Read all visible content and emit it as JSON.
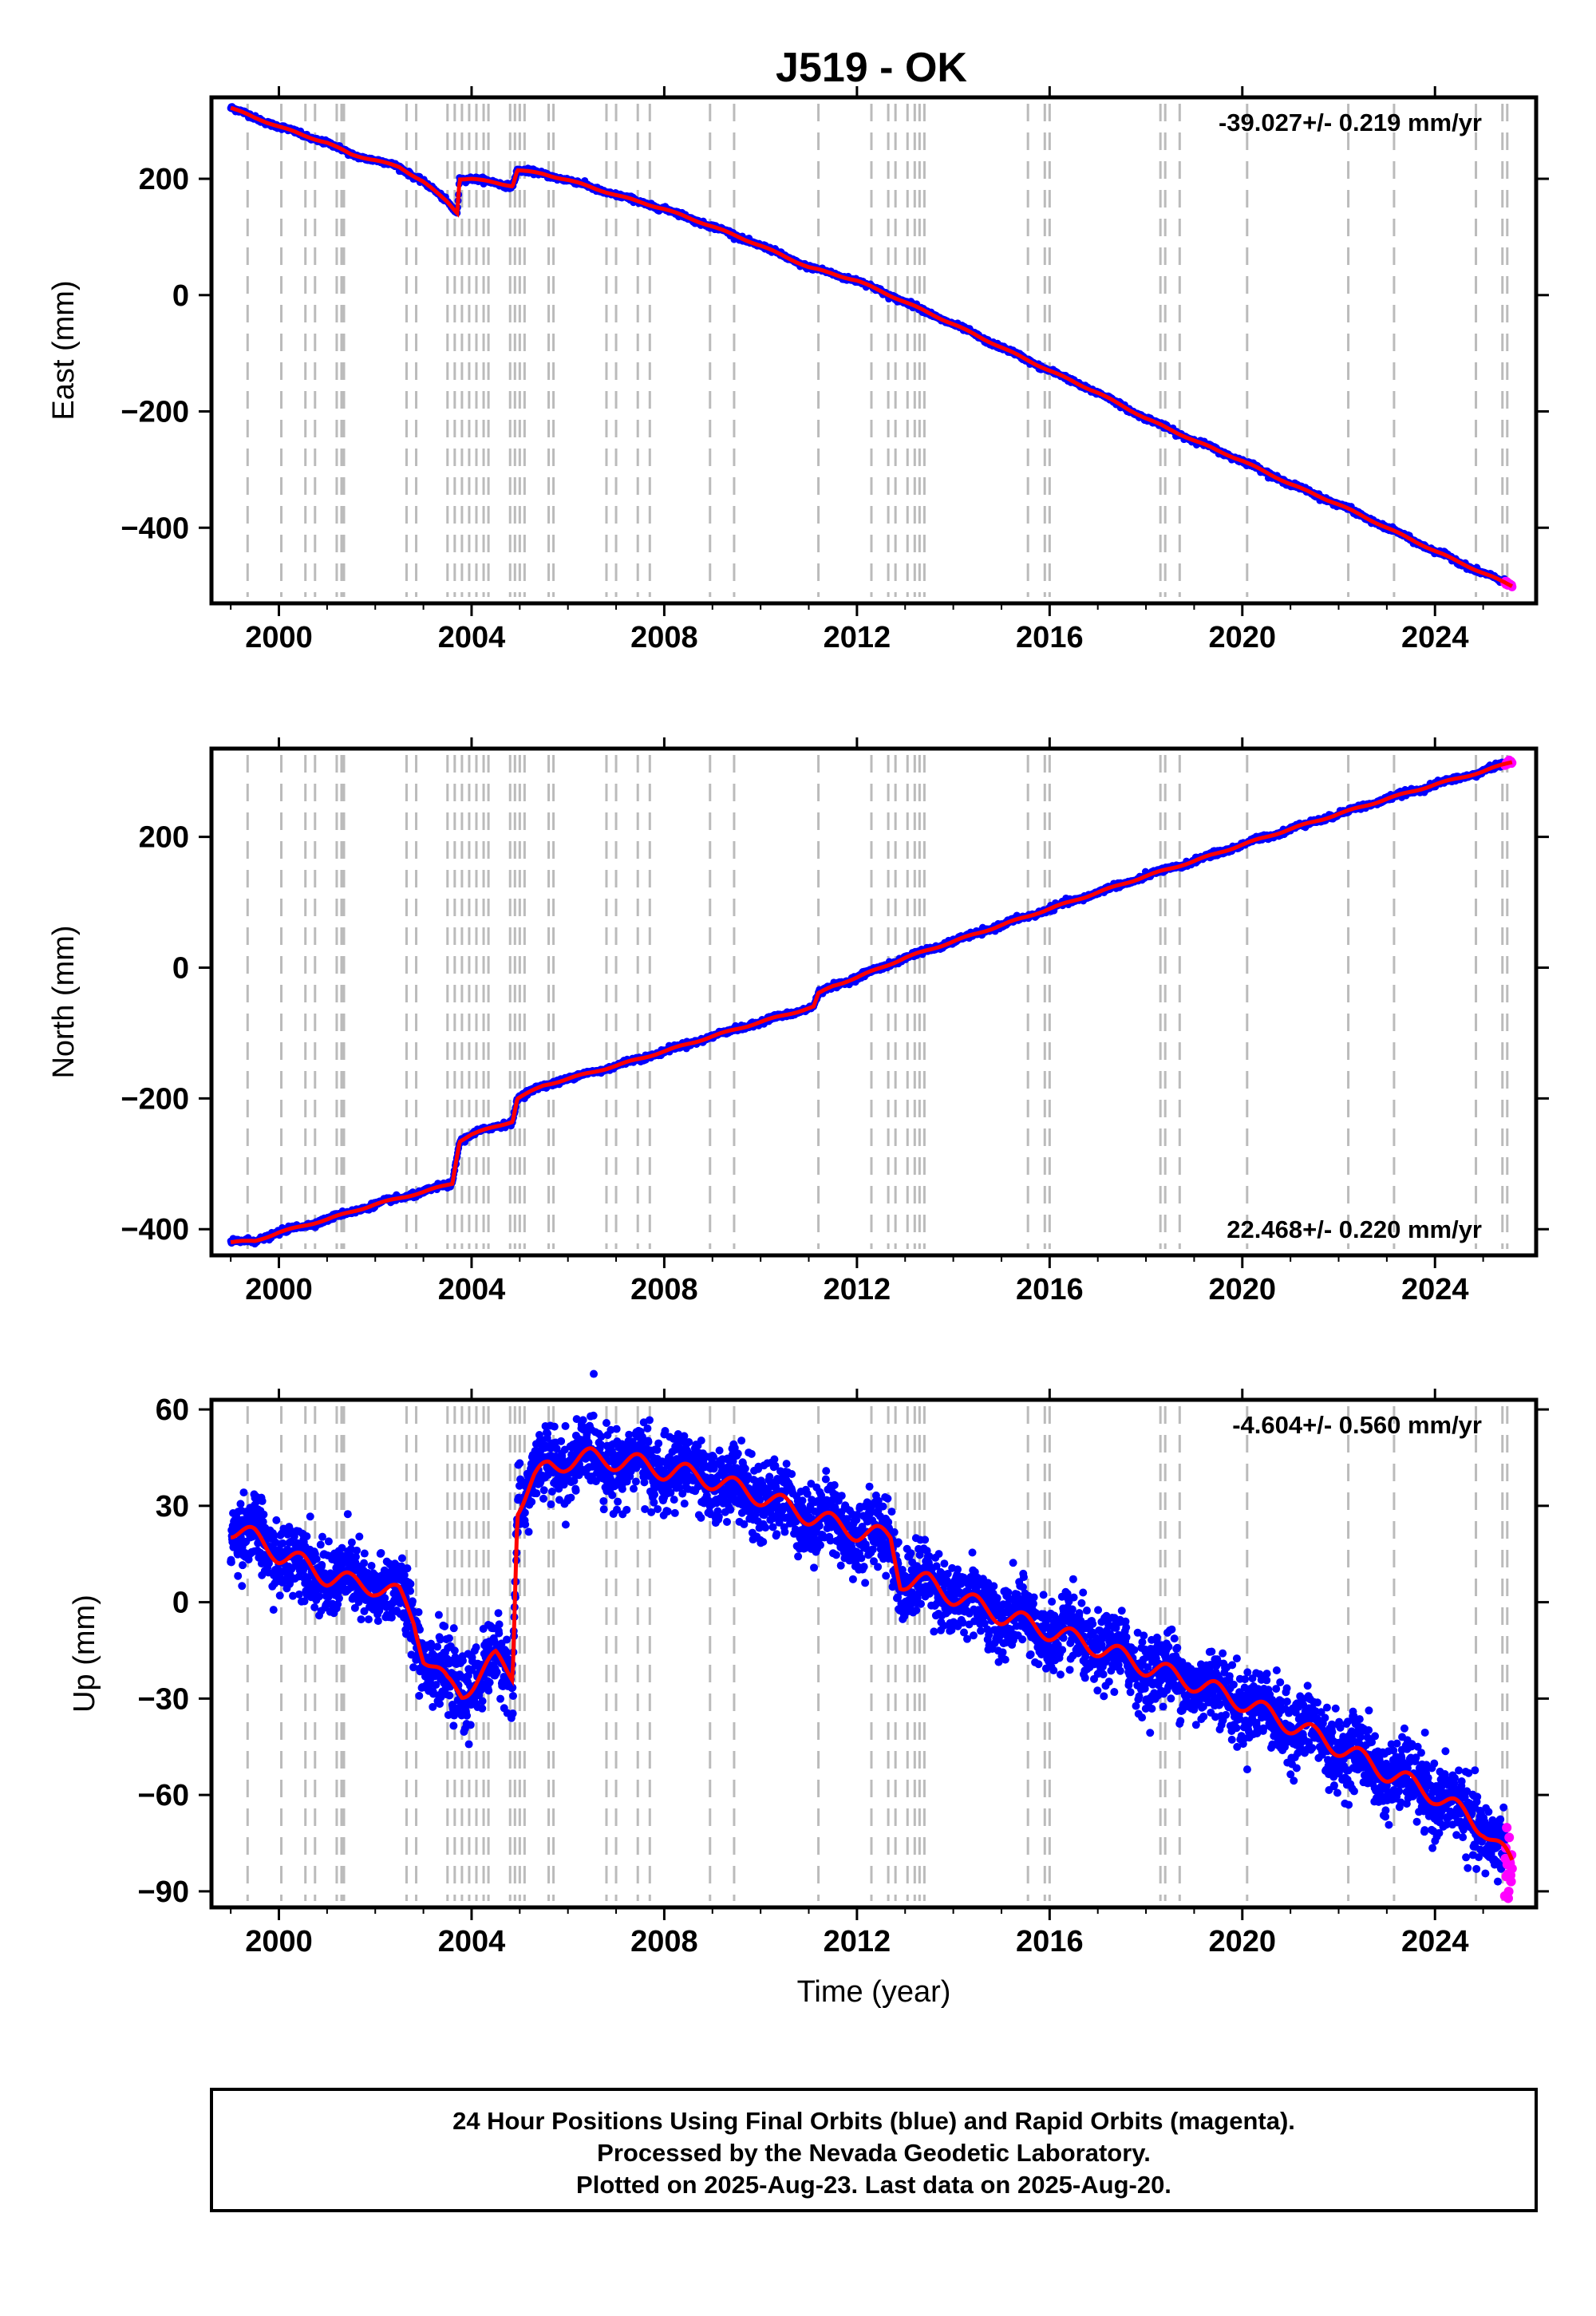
{
  "title": "J519 - OK",
  "footer": {
    "line1": "24 Hour Positions Using Final Orbits (blue) and Rapid Orbits (magenta).",
    "line2": "Processed by the Nevada Geodetic Laboratory.",
    "line3": "Plotted on 2025-Aug-23. Last data on 2025-Aug-20."
  },
  "colors": {
    "final_orbits": "#0000ff",
    "rapid_orbits": "#ff00ff",
    "model_fit": "#ff0000",
    "event_lines": "#bbbbbb"
  },
  "event_years": [
    1999.35,
    2000.05,
    2000.55,
    2000.75,
    2001.2,
    2001.3,
    2001.35,
    2002.65,
    2002.85,
    2003.5,
    2003.65,
    2003.8,
    2003.95,
    2004.1,
    2004.25,
    2004.35,
    2004.8,
    2004.9,
    2005.0,
    2005.1,
    2005.6,
    2005.7,
    2006.8,
    2007.0,
    2007.45,
    2007.7,
    2008.95,
    2009.45,
    2011.2,
    2012.3,
    2012.65,
    2012.8,
    2013.05,
    2013.2,
    2013.3,
    2013.4,
    2015.55,
    2015.9,
    2016.0,
    2018.3,
    2018.4,
    2018.7,
    2020.1,
    2022.2,
    2023.15,
    2024.85,
    2025.4,
    2025.5
  ],
  "chart_data": [
    {
      "type": "scatter",
      "panel": "east",
      "title": "J519 - OK",
      "ylabel": "East (mm)",
      "xlabel": "",
      "xlim": [
        1998.6,
        2026.1
      ],
      "ylim": [
        -530,
        340
      ],
      "xticks": [
        "2000",
        "2004",
        "2008",
        "2012",
        "2016",
        "2020",
        "2024"
      ],
      "yticks": [
        "200",
        "0",
        "−200",
        "−400"
      ],
      "rate_label": "-39.027+/- 0.219 mm/yr",
      "rate_position": "top-right",
      "series": [
        {
          "role": "trend",
          "x": [
            1999.0,
            1999.5,
            2000.0,
            2000.5,
            2001.0,
            2001.5,
            2002.0,
            2002.5,
            2003.0,
            2003.5,
            2003.7,
            2003.75,
            2004.0,
            2004.5,
            2004.85,
            2004.95,
            2005.5,
            2006.0,
            2007.0,
            2008.0,
            2009.0,
            2010.0,
            2011.0,
            2012.0,
            2013.0,
            2014.0,
            2015.0,
            2016.0,
            2017.0,
            2018.0,
            2019.0,
            2020.0,
            2021.0,
            2022.0,
            2023.0,
            2024.0,
            2025.0,
            2025.6
          ],
          "y": [
            322,
            305,
            290,
            275,
            262,
            242,
            232,
            220,
            195,
            160,
            142,
            200,
            200,
            193,
            188,
            215,
            208,
            198,
            172,
            148,
            118,
            85,
            48,
            25,
            -12,
            -50,
            -90,
            -130,
            -168,
            -212,
            -250,
            -285,
            -325,
            -360,
            -400,
            -440,
            -478,
            -500
          ]
        }
      ]
    },
    {
      "type": "scatter",
      "panel": "north",
      "ylabel": "North (mm)",
      "xlabel": "",
      "xlim": [
        1998.6,
        2026.1
      ],
      "ylim": [
        -440,
        335
      ],
      "xticks": [
        "2000",
        "2004",
        "2008",
        "2012",
        "2016",
        "2020",
        "2024"
      ],
      "yticks": [
        "200",
        "0",
        "−200",
        "−400"
      ],
      "rate_label": "22.468+/- 0.220 mm/yr",
      "rate_position": "bottom-right",
      "series": [
        {
          "role": "trend",
          "x": [
            1999.0,
            1999.5,
            2000.0,
            2001.0,
            2002.0,
            2003.0,
            2003.6,
            2003.75,
            2004.0,
            2004.5,
            2004.85,
            2004.95,
            2005.5,
            2006.0,
            2007.0,
            2008.0,
            2009.0,
            2010.0,
            2011.1,
            2011.2,
            2011.5,
            2012.0,
            2013.0,
            2014.0,
            2015.0,
            2016.0,
            2017.0,
            2018.0,
            2019.0,
            2020.0,
            2021.0,
            2022.0,
            2023.0,
            2024.0,
            2025.0,
            2025.6
          ],
          "y": [
            -420,
            -418,
            -405,
            -385,
            -362,
            -343,
            -330,
            -265,
            -255,
            -243,
            -235,
            -200,
            -180,
            -170,
            -150,
            -128,
            -105,
            -83,
            -60,
            -40,
            -28,
            -15,
            15,
            40,
            65,
            90,
            115,
            140,
            163,
            188,
            212,
            235,
            258,
            280,
            300,
            315
          ]
        }
      ]
    },
    {
      "type": "scatter",
      "panel": "up",
      "ylabel": "Up (mm)",
      "xlabel": "Time (year)",
      "xlim": [
        1998.6,
        2026.1
      ],
      "ylim": [
        -95,
        63
      ],
      "xticks": [
        "2000",
        "2004",
        "2008",
        "2012",
        "2016",
        "2020",
        "2024"
      ],
      "yticks": [
        "60",
        "30",
        "0",
        "−30",
        "−60",
        "−90"
      ],
      "rate_label": "-4.604+/- 0.560 mm/yr",
      "rate_position": "top-right",
      "series": [
        {
          "role": "trend",
          "x": [
            1999.0,
            1999.5,
            2000.0,
            2000.5,
            2001.0,
            2001.5,
            2002.0,
            2002.5,
            2002.8,
            2003.0,
            2003.3,
            2003.5,
            2003.8,
            2004.0,
            2004.5,
            2004.85,
            2004.95,
            2005.3,
            2005.6,
            2006.0,
            2006.5,
            2007.0,
            2007.5,
            2008.0,
            2008.5,
            2009.0,
            2010.0,
            2011.0,
            2012.0,
            2012.7,
            2012.9,
            2013.5,
            2014.0,
            2015.0,
            2016.0,
            2017.0,
            2018.0,
            2019.0,
            2020.0,
            2021.0,
            2022.0,
            2023.0,
            2024.0,
            2025.0,
            2025.6
          ],
          "y": [
            23,
            20,
            15,
            12,
            8,
            6,
            5,
            2,
            -5,
            -16,
            -22,
            -26,
            -28,
            -25,
            -18,
            -22,
            30,
            38,
            42,
            44,
            45,
            44,
            43,
            41,
            40,
            38,
            33,
            27,
            22,
            20,
            7,
            6,
            2,
            -4,
            -9,
            -14,
            -20,
            -25,
            -31,
            -38,
            -45,
            -53,
            -60,
            -70,
            -82
          ]
        }
      ]
    }
  ]
}
